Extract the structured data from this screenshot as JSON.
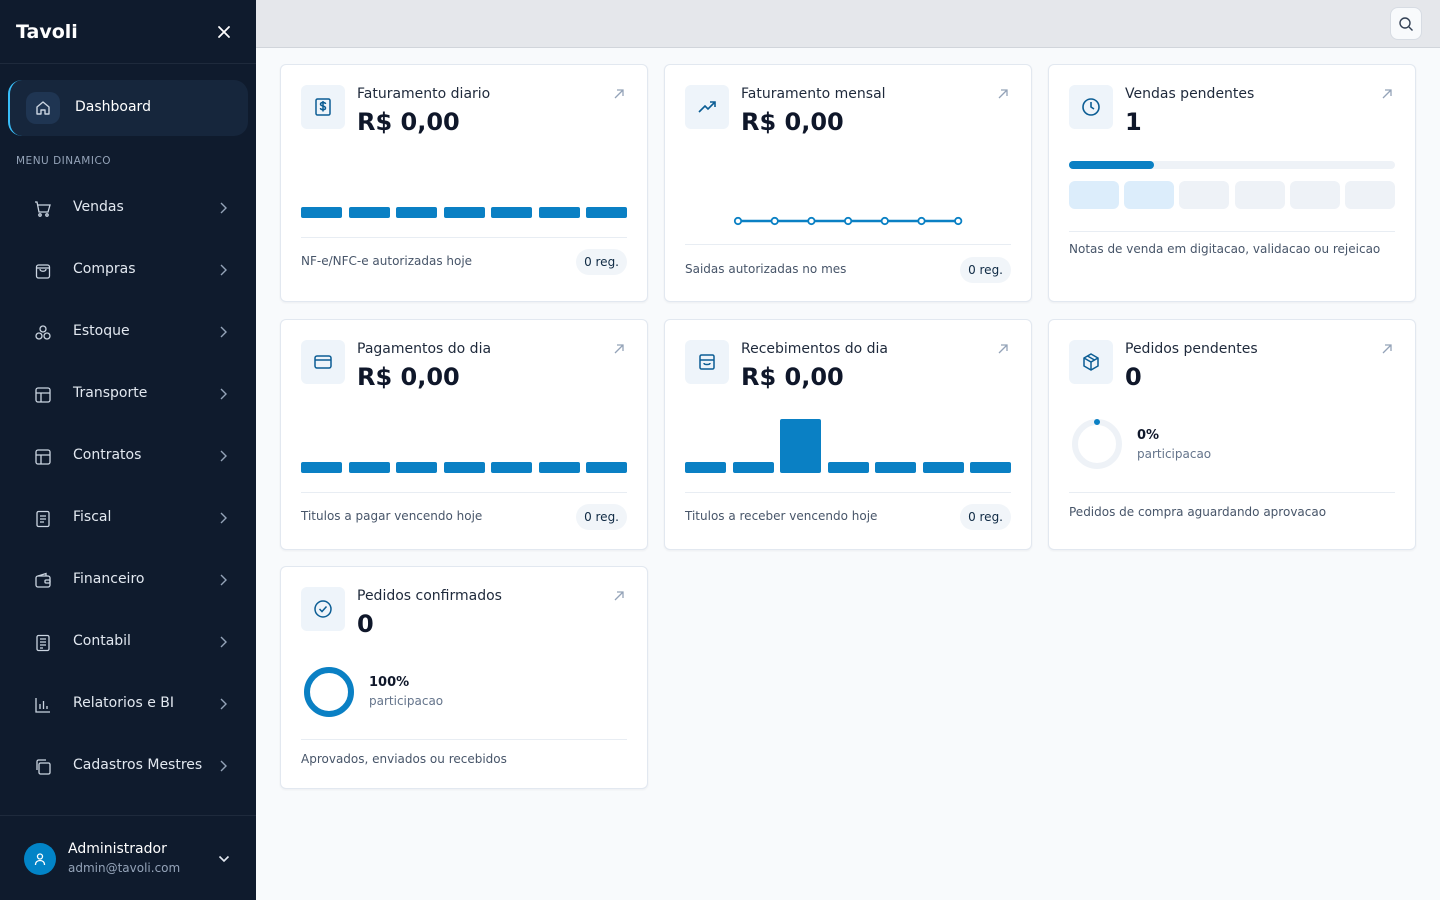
{
  "app": {
    "name": "Tavoli"
  },
  "sidebar": {
    "dashboard_label": "Dashboard",
    "section_label": "MENU DINAMICO",
    "items": [
      {
        "label": "Vendas",
        "icon": "cart-icon"
      },
      {
        "label": "Compras",
        "icon": "shopping-bag-icon"
      },
      {
        "label": "Estoque",
        "icon": "boxes-icon"
      },
      {
        "label": "Transporte",
        "icon": "layout-icon"
      },
      {
        "label": "Contratos",
        "icon": "layout-icon"
      },
      {
        "label": "Fiscal",
        "icon": "receipt-icon"
      },
      {
        "label": "Financeiro",
        "icon": "wallet-icon"
      },
      {
        "label": "Contabil",
        "icon": "ledger-icon"
      },
      {
        "label": "Relatorios e BI",
        "icon": "bar-chart-icon"
      },
      {
        "label": "Cadastros Mestres",
        "icon": "copy-icon"
      }
    ],
    "user": {
      "name": "Administrador",
      "email": "admin@tavoli.com"
    }
  },
  "colors": {
    "accent": "#0a80c4",
    "sidebar_bg": "#0f1b2d",
    "icon_color": "#0b5d94"
  },
  "cards": {
    "faturamento_diario": {
      "title": "Faturamento diario",
      "value": "R$ 0,00",
      "footer": "NF-e/NFC-e autorizadas hoje",
      "badge": "0 reg.",
      "bar_levels": [
        0.18,
        0.18,
        0.18,
        0.18,
        0.18,
        0.18,
        0.18
      ]
    },
    "faturamento_mensal": {
      "title": "Faturamento mensal",
      "value": "R$ 0,00",
      "footer": "Saidas autorizadas no mes",
      "badge": "0 reg.",
      "line_points": [
        0,
        0,
        0,
        0,
        0,
        0,
        0
      ]
    },
    "vendas_pendentes": {
      "title": "Vendas pendentes",
      "value": "1",
      "footer": "Notas de venda em digitacao, validacao ou rejeicao",
      "progress": 0.26,
      "segments_active": 2,
      "segments_total": 6
    },
    "pagamentos_dia": {
      "title": "Pagamentos do dia",
      "value": "R$ 0,00",
      "footer": "Titulos a pagar vencendo hoje",
      "badge": "0 reg.",
      "bar_levels": [
        0.18,
        0.18,
        0.18,
        0.18,
        0.18,
        0.18,
        0.18
      ]
    },
    "recebimentos_dia": {
      "title": "Recebimentos do dia",
      "value": "R$ 0,00",
      "footer": "Titulos a receber vencendo hoje",
      "badge": "0 reg.",
      "bar_levels": [
        0.18,
        0.18,
        0.9,
        0.18,
        0.18,
        0.18,
        0.18
      ]
    },
    "pedidos_pendentes": {
      "title": "Pedidos pendentes",
      "value": "0",
      "pct": "0%",
      "pct_label": "participacao",
      "pct_value": 0,
      "footer": "Pedidos de compra aguardando aprovacao"
    },
    "pedidos_confirmados": {
      "title": "Pedidos confirmados",
      "value": "0",
      "pct": "100%",
      "pct_label": "participacao",
      "pct_value": 1,
      "footer": "Aprovados, enviados ou recebidos"
    }
  }
}
